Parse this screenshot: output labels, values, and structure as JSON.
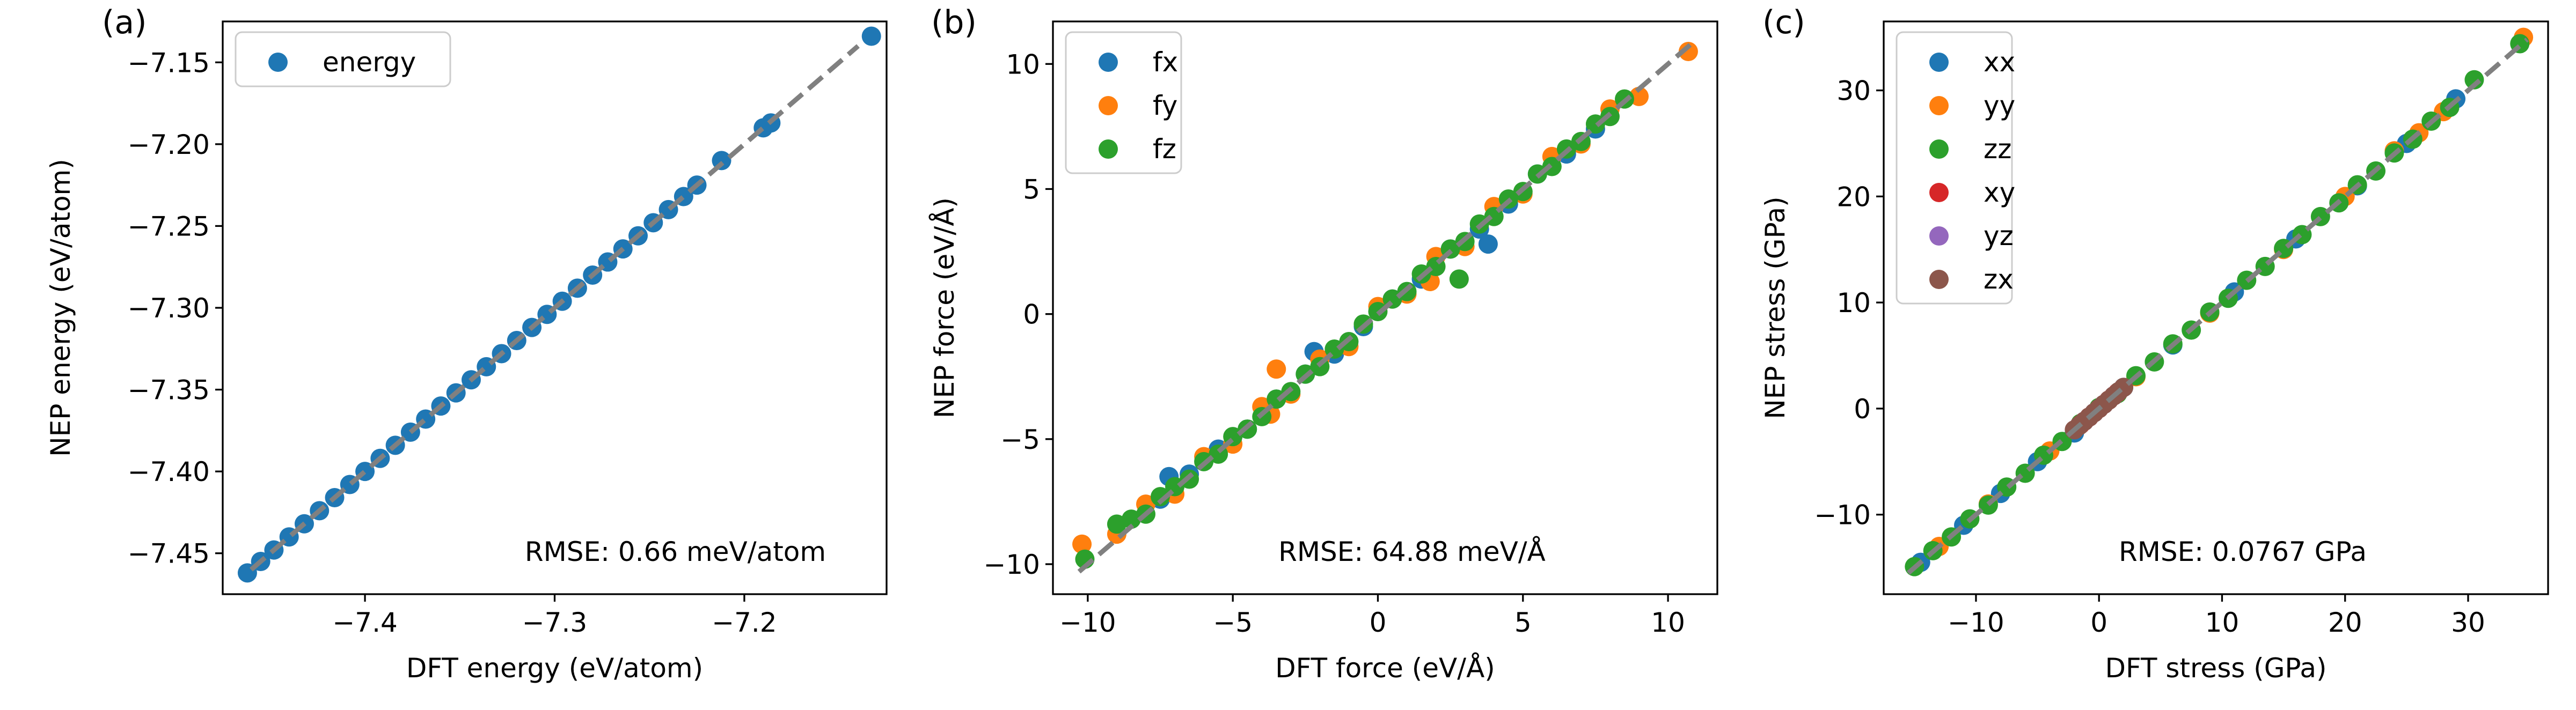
{
  "chart_data": [
    {
      "type": "scatter",
      "panel_label": "(a)",
      "xlabel": "DFT energy (eV/atom)",
      "ylabel": "NEP energy (eV/atom)",
      "xlim": [
        -7.475,
        -7.125
      ],
      "ylim": [
        -7.475,
        -7.125
      ],
      "xticks": [
        -7.4,
        -7.3,
        -7.2
      ],
      "xtick_labels": [
        "−7.4",
        "−7.3",
        "−7.2"
      ],
      "yticks": [
        -7.45,
        -7.4,
        -7.35,
        -7.3,
        -7.25,
        -7.2,
        -7.15
      ],
      "ytick_labels": [
        "−7.45",
        "−7.40",
        "−7.35",
        "−7.30",
        "−7.25",
        "−7.20",
        "−7.15"
      ],
      "grid": false,
      "legend_position": "upper-left",
      "annotation": "RMSE: 0.66 meV/atom",
      "reference_line": {
        "x": [
          -7.46,
          -7.14
        ],
        "y": [
          -7.46,
          -7.14
        ],
        "style": "dashed",
        "color": "#808080"
      },
      "series": [
        {
          "name": "energy",
          "color": "#1f77b4",
          "x": [
            -7.462,
            -7.455,
            -7.448,
            -7.44,
            -7.432,
            -7.424,
            -7.416,
            -7.408,
            -7.4,
            -7.392,
            -7.384,
            -7.376,
            -7.368,
            -7.36,
            -7.352,
            -7.344,
            -7.336,
            -7.328,
            -7.32,
            -7.312,
            -7.304,
            -7.296,
            -7.288,
            -7.28,
            -7.272,
            -7.264,
            -7.256,
            -7.248,
            -7.24,
            -7.232,
            -7.225,
            -7.212,
            -7.19,
            -7.186,
            -7.133
          ],
          "y": [
            -7.462,
            -7.455,
            -7.448,
            -7.44,
            -7.432,
            -7.424,
            -7.416,
            -7.408,
            -7.4,
            -7.392,
            -7.384,
            -7.376,
            -7.368,
            -7.36,
            -7.352,
            -7.344,
            -7.336,
            -7.328,
            -7.32,
            -7.312,
            -7.304,
            -7.296,
            -7.288,
            -7.28,
            -7.272,
            -7.264,
            -7.256,
            -7.248,
            -7.24,
            -7.232,
            -7.225,
            -7.21,
            -7.19,
            -7.187,
            -7.134
          ]
        }
      ]
    },
    {
      "type": "scatter",
      "panel_label": "(b)",
      "xlabel": "DFT force (eV/Å)",
      "ylabel": "NEP force (eV/Å)",
      "xlim": [
        -11.2,
        11.7
      ],
      "ylim": [
        -11.2,
        11.7
      ],
      "xticks": [
        -10,
        -5,
        0,
        5,
        10
      ],
      "xtick_labels": [
        "−10",
        "−5",
        "0",
        "5",
        "10"
      ],
      "yticks": [
        -10,
        -5,
        0,
        5,
        10
      ],
      "ytick_labels": [
        "−10",
        "−5",
        "0",
        "5",
        "10"
      ],
      "grid": false,
      "legend_position": "upper-left",
      "annotation": "RMSE: 64.88 meV/Å",
      "reference_line": {
        "x": [
          -10.3,
          10.8
        ],
        "y": [
          -10.3,
          10.8
        ],
        "style": "dashed",
        "color": "#808080"
      },
      "series": [
        {
          "name": "fx",
          "color": "#1f77b4",
          "x": [
            -7.5,
            -6.5,
            -5.5,
            -4.5,
            -3.5,
            -2.5,
            -1.5,
            -0.5,
            0.5,
            1.5,
            2.5,
            3.5,
            3.8,
            4.5,
            5.5,
            6.5,
            7.5,
            -2.2,
            -7.2
          ],
          "y": [
            -7.4,
            -6.4,
            -5.4,
            -4.6,
            -3.4,
            -2.4,
            -1.6,
            -0.5,
            0.6,
            1.4,
            2.6,
            3.4,
            2.8,
            4.4,
            5.6,
            6.4,
            7.4,
            -1.5,
            -6.5
          ]
        },
        {
          "name": "fy",
          "color": "#ff7f0e",
          "x": [
            -10.2,
            -9.0,
            -8.0,
            -7.0,
            -6.0,
            -5.0,
            -4.0,
            -3.5,
            -3.0,
            -2.0,
            -1.0,
            0.0,
            1.0,
            2.0,
            3.0,
            4.0,
            5.0,
            6.0,
            7.0,
            8.0,
            9.0,
            10.7,
            1.8,
            -3.7
          ],
          "y": [
            -9.2,
            -8.8,
            -7.6,
            -7.2,
            -5.7,
            -5.2,
            -3.7,
            -2.2,
            -3.2,
            -1.8,
            -1.3,
            0.3,
            0.8,
            2.3,
            2.7,
            4.3,
            4.8,
            6.3,
            6.8,
            8.2,
            8.7,
            10.5,
            1.3,
            -4.0
          ]
        },
        {
          "name": "fz",
          "color": "#2ca02c",
          "x": [
            -10.1,
            -9.0,
            -8.5,
            -8.0,
            -7.5,
            -7.0,
            -6.5,
            -6.0,
            -5.5,
            -5.0,
            -4.5,
            -4.0,
            -3.5,
            -3.0,
            -2.5,
            -2.0,
            -1.5,
            -1.0,
            -0.5,
            0.0,
            0.5,
            1.0,
            1.5,
            2.0,
            2.5,
            3.0,
            3.5,
            4.0,
            4.5,
            5.0,
            5.5,
            6.0,
            6.5,
            7.0,
            7.5,
            8.0,
            8.5,
            2.8
          ],
          "y": [
            -9.8,
            -8.4,
            -8.2,
            -8.0,
            -7.3,
            -6.9,
            -6.6,
            -5.9,
            -5.6,
            -4.9,
            -4.6,
            -4.1,
            -3.4,
            -3.1,
            -2.4,
            -2.1,
            -1.4,
            -1.1,
            -0.4,
            0.1,
            0.6,
            0.9,
            1.6,
            1.9,
            2.6,
            2.9,
            3.6,
            3.9,
            4.6,
            4.9,
            5.6,
            5.9,
            6.6,
            6.9,
            7.6,
            7.9,
            8.6,
            1.4
          ]
        }
      ]
    },
    {
      "type": "scatter",
      "panel_label": "(c)",
      "xlabel": "DFT stress (GPa)",
      "ylabel": "NEP stress (GPa)",
      "xlim": [
        -17.5,
        36.5
      ],
      "ylim": [
        -17.5,
        36.5
      ],
      "xticks": [
        -10,
        0,
        10,
        20,
        30
      ],
      "xtick_labels": [
        "−10",
        "0",
        "10",
        "20",
        "30"
      ],
      "yticks": [
        -10,
        0,
        10,
        20,
        30
      ],
      "ytick_labels": [
        "−10",
        "0",
        "10",
        "20",
        "30"
      ],
      "grid": false,
      "legend_position": "upper-left",
      "annotation": "RMSE: 0.0767 GPa",
      "reference_line": {
        "x": [
          -15.5,
          34.8
        ],
        "y": [
          -15.5,
          34.8
        ],
        "style": "dashed",
        "color": "#808080"
      },
      "series": [
        {
          "name": "xx",
          "color": "#1f77b4",
          "x": [
            -14.5,
            -11.0,
            -8.0,
            -5.0,
            -2.0,
            2.0,
            6.0,
            11.0,
            16.0,
            21.0,
            25.0,
            29.0
          ],
          "y": [
            -14.5,
            -11.0,
            -8.0,
            -5.0,
            -2.3,
            2.0,
            6.0,
            11.0,
            16.0,
            21.0,
            25.0,
            29.2
          ]
        },
        {
          "name": "yy",
          "color": "#ff7f0e",
          "x": [
            -13.0,
            -9.0,
            -4.0,
            3.0,
            9.0,
            15.0,
            20.0,
            24.0,
            26.0,
            28.0,
            34.5
          ],
          "y": [
            -13.0,
            -9.0,
            -4.0,
            3.0,
            9.0,
            15.0,
            20.0,
            24.3,
            26.0,
            28.0,
            35.0
          ]
        },
        {
          "name": "zz",
          "color": "#2ca02c",
          "x": [
            -15.0,
            -13.5,
            -12.0,
            -10.5,
            -9.0,
            -7.5,
            -6.0,
            -4.5,
            -3.0,
            -1.5,
            0.0,
            1.5,
            3.0,
            4.5,
            6.0,
            7.5,
            9.0,
            10.5,
            12.0,
            13.5,
            15.0,
            16.5,
            18.0,
            19.5,
            21.0,
            22.5,
            24.0,
            25.5,
            27.0,
            28.5,
            30.5,
            34.2
          ],
          "y": [
            -14.9,
            -13.4,
            -12.1,
            -10.4,
            -9.1,
            -7.4,
            -6.1,
            -4.4,
            -3.1,
            -1.4,
            0.1,
            1.4,
            3.1,
            4.4,
            6.1,
            7.4,
            9.1,
            10.4,
            12.1,
            13.4,
            15.1,
            16.4,
            18.1,
            19.4,
            21.1,
            22.4,
            24.1,
            25.4,
            27.1,
            28.4,
            31.0,
            34.4
          ]
        },
        {
          "name": "xy",
          "color": "#d62728",
          "x": [
            -1.5,
            -0.8,
            0.0,
            0.8,
            1.5
          ],
          "y": [
            -1.5,
            -0.8,
            0.0,
            0.8,
            1.5
          ]
        },
        {
          "name": "yz",
          "color": "#9467bd",
          "x": [
            -1.2,
            -0.4,
            0.4,
            1.2
          ],
          "y": [
            -1.2,
            -0.4,
            0.4,
            1.2
          ]
        },
        {
          "name": "zx",
          "color": "#8c564b",
          "x": [
            -2.0,
            -1.6,
            -1.2,
            -0.8,
            -0.4,
            0.0,
            0.4,
            0.8,
            1.2,
            1.6,
            2.0
          ],
          "y": [
            -2.0,
            -1.6,
            -1.2,
            -0.8,
            -0.4,
            0.0,
            0.4,
            0.8,
            1.2,
            1.6,
            2.0
          ]
        }
      ]
    }
  ]
}
